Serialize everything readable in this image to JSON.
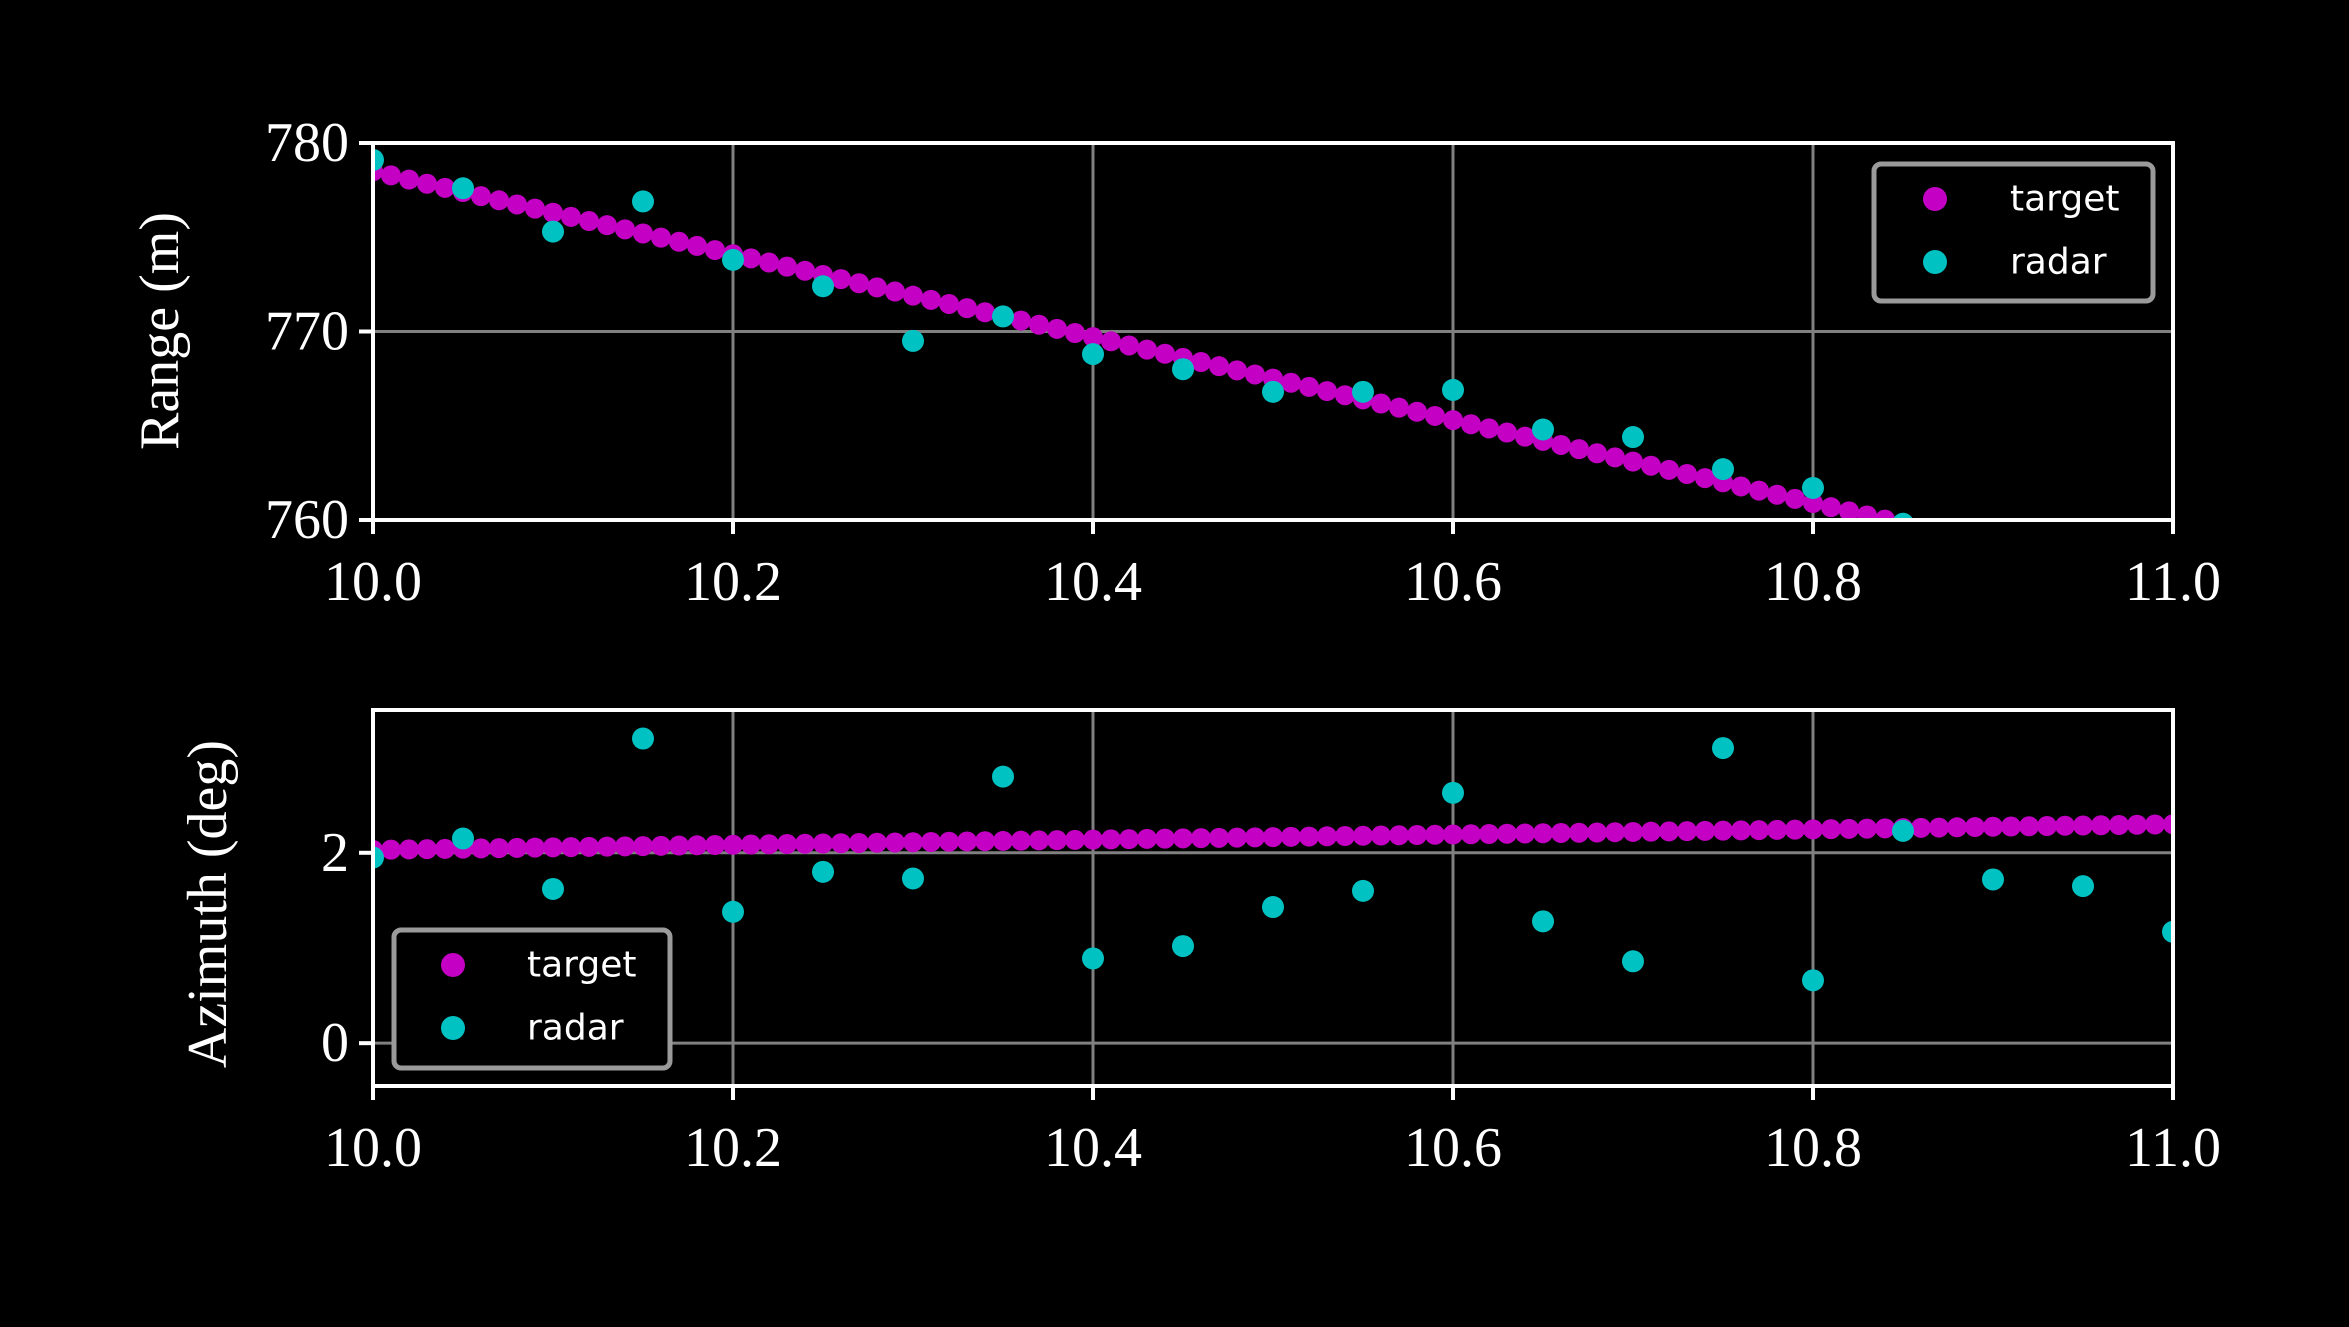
{
  "colors": {
    "background": "#000000",
    "target": "#c400c4",
    "radar": "#00c2c2",
    "grid": "#808080",
    "axes": "#ffffff",
    "legend_border": "#9a9a9a"
  },
  "chart_data": [
    {
      "type": "scatter",
      "title": "",
      "xlabel": "",
      "ylabel": "Range (m)",
      "xlim": [
        10.0,
        11.0
      ],
      "ylim": [
        760,
        780
      ],
      "xticks": [
        10.0,
        10.2,
        10.4,
        10.6,
        10.8,
        11.0
      ],
      "xtick_labels": [
        "10.0",
        "10.2",
        "10.4",
        "10.6",
        "10.8",
        "11.0"
      ],
      "yticks": [
        760,
        770,
        780
      ],
      "ytick_labels": [
        "760",
        "770",
        "780"
      ],
      "grid": true,
      "legend": {
        "position": "upper-right",
        "entries": [
          "target",
          "radar"
        ]
      },
      "series": [
        {
          "name": "target",
          "x": [
            10.0,
            10.01,
            10.02,
            10.03,
            10.04,
            10.05,
            10.06,
            10.07,
            10.08,
            10.09,
            10.1,
            10.11,
            10.12,
            10.13,
            10.14,
            10.15,
            10.16,
            10.17,
            10.18,
            10.19,
            10.2,
            10.21,
            10.22,
            10.23,
            10.24,
            10.25,
            10.26,
            10.27,
            10.28,
            10.29,
            10.3,
            10.31,
            10.32,
            10.33,
            10.34,
            10.35,
            10.36,
            10.37,
            10.38,
            10.39,
            10.4,
            10.41,
            10.42,
            10.43,
            10.44,
            10.45,
            10.46,
            10.47,
            10.48,
            10.49,
            10.5,
            10.51,
            10.52,
            10.53,
            10.54,
            10.55,
            10.56,
            10.57,
            10.58,
            10.59,
            10.6,
            10.61,
            10.62,
            10.63,
            10.64,
            10.65,
            10.66,
            10.67,
            10.68,
            10.69,
            10.7,
            10.71,
            10.72,
            10.73,
            10.74,
            10.75,
            10.76,
            10.77,
            10.78,
            10.79,
            10.8,
            10.81,
            10.82,
            10.83,
            10.84,
            10.85,
            10.86
          ],
          "y": [
            778.5,
            778.28,
            778.06,
            777.84,
            777.62,
            777.4,
            777.18,
            776.96,
            776.74,
            776.52,
            776.3,
            776.08,
            775.86,
            775.64,
            775.42,
            775.2,
            774.98,
            774.76,
            774.54,
            774.32,
            774.1,
            773.88,
            773.66,
            773.44,
            773.22,
            773.0,
            772.78,
            772.56,
            772.34,
            772.12,
            771.9,
            771.68,
            771.46,
            771.24,
            771.02,
            770.8,
            770.58,
            770.36,
            770.14,
            769.92,
            769.7,
            769.48,
            769.26,
            769.04,
            768.82,
            768.6,
            768.38,
            768.16,
            767.94,
            767.72,
            767.5,
            767.28,
            767.06,
            766.84,
            766.62,
            766.4,
            766.18,
            765.96,
            765.74,
            765.52,
            765.3,
            765.08,
            764.86,
            764.64,
            764.42,
            764.2,
            763.98,
            763.76,
            763.54,
            763.32,
            763.1,
            762.88,
            762.66,
            762.44,
            762.22,
            762.0,
            761.78,
            761.56,
            761.34,
            761.12,
            760.9,
            760.68,
            760.46,
            760.24,
            760.02,
            759.8,
            759.58
          ]
        },
        {
          "name": "radar",
          "x": [
            10.0,
            10.05,
            10.1,
            10.15,
            10.2,
            10.25,
            10.3,
            10.35,
            10.4,
            10.45,
            10.5,
            10.55,
            10.6,
            10.65,
            10.7,
            10.75,
            10.8,
            10.85
          ],
          "y": [
            779.1,
            777.6,
            775.3,
            776.9,
            773.8,
            772.4,
            769.5,
            770.8,
            768.8,
            768.0,
            766.8,
            766.8,
            766.9,
            764.8,
            764.4,
            762.7,
            761.7,
            759.8
          ]
        }
      ]
    },
    {
      "type": "scatter",
      "title": "",
      "xlabel": "",
      "ylabel": "Azimuth (deg)",
      "xlim": [
        10.0,
        11.0
      ],
      "ylim": [
        -0.45,
        3.5
      ],
      "xticks": [
        10.0,
        10.2,
        10.4,
        10.6,
        10.8,
        11.0
      ],
      "xtick_labels": [
        "10.0",
        "10.2",
        "10.4",
        "10.6",
        "10.8",
        "11.0"
      ],
      "yticks": [
        0,
        2
      ],
      "ytick_labels": [
        "0",
        "2"
      ],
      "grid": true,
      "legend": {
        "position": "lower-left",
        "entries": [
          "target",
          "radar"
        ]
      },
      "series": [
        {
          "name": "target",
          "x": [
            10.0,
            10.01,
            10.02,
            10.03,
            10.04,
            10.05,
            10.06,
            10.07,
            10.08,
            10.09,
            10.1,
            10.11,
            10.12,
            10.13,
            10.14,
            10.15,
            10.16,
            10.17,
            10.18,
            10.19,
            10.2,
            10.21,
            10.22,
            10.23,
            10.24,
            10.25,
            10.26,
            10.27,
            10.28,
            10.29,
            10.3,
            10.31,
            10.32,
            10.33,
            10.34,
            10.35,
            10.36,
            10.37,
            10.38,
            10.39,
            10.4,
            10.41,
            10.42,
            10.43,
            10.44,
            10.45,
            10.46,
            10.47,
            10.48,
            10.49,
            10.5,
            10.51,
            10.52,
            10.53,
            10.54,
            10.55,
            10.56,
            10.57,
            10.58,
            10.59,
            10.6,
            10.61,
            10.62,
            10.63,
            10.64,
            10.65,
            10.66,
            10.67,
            10.68,
            10.69,
            10.7,
            10.71,
            10.72,
            10.73,
            10.74,
            10.75,
            10.76,
            10.77,
            10.78,
            10.79,
            10.8,
            10.81,
            10.82,
            10.83,
            10.84,
            10.85,
            10.86,
            10.87,
            10.88,
            10.89,
            10.9,
            10.91,
            10.92,
            10.93,
            10.94,
            10.95,
            10.96,
            10.97,
            10.98,
            10.99,
            11.0
          ],
          "y": [
            2.03,
            2.0327,
            2.0354,
            2.0381,
            2.0408,
            2.0435,
            2.0462,
            2.0489,
            2.0516,
            2.0543,
            2.057,
            2.0597,
            2.0624,
            2.0651,
            2.0678,
            2.0705,
            2.0732,
            2.0759,
            2.0786,
            2.0813,
            2.084,
            2.0867,
            2.0894,
            2.0921,
            2.0948,
            2.0975,
            2.1002,
            2.1029,
            2.1056,
            2.1083,
            2.111,
            2.1137,
            2.1164,
            2.1191,
            2.1218,
            2.1245,
            2.1272,
            2.1299,
            2.1326,
            2.1353,
            2.138,
            2.1407,
            2.1434,
            2.1461,
            2.1488,
            2.1515,
            2.1542,
            2.1569,
            2.1596,
            2.1623,
            2.165,
            2.1677,
            2.1704,
            2.1731,
            2.1758,
            2.1785,
            2.1812,
            2.1839,
            2.1866,
            2.1893,
            2.192,
            2.1947,
            2.1974,
            2.2001,
            2.2028,
            2.2055,
            2.2082,
            2.2109,
            2.2136,
            2.2163,
            2.219,
            2.2217,
            2.2244,
            2.2271,
            2.2298,
            2.2325,
            2.2352,
            2.2379,
            2.2406,
            2.2433,
            2.246,
            2.2487,
            2.2514,
            2.2541,
            2.2568,
            2.2595,
            2.2622,
            2.2649,
            2.2676,
            2.2703,
            2.273,
            2.2757,
            2.2784,
            2.2811,
            2.2838,
            2.2865,
            2.2892,
            2.2919,
            2.2946,
            2.2973,
            2.3
          ]
        },
        {
          "name": "radar",
          "x": [
            10.0,
            10.05,
            10.1,
            10.15,
            10.2,
            10.25,
            10.3,
            10.35,
            10.4,
            10.45,
            10.5,
            10.55,
            10.6,
            10.65,
            10.7,
            10.75,
            10.8,
            10.85,
            10.9,
            10.95,
            11.0
          ],
          "y": [
            1.95,
            2.15,
            1.62,
            3.2,
            1.38,
            1.8,
            1.73,
            2.8,
            0.89,
            1.02,
            1.43,
            1.6,
            2.63,
            1.28,
            0.86,
            3.1,
            0.66,
            2.23,
            1.72,
            1.65,
            1.17
          ]
        }
      ]
    }
  ]
}
